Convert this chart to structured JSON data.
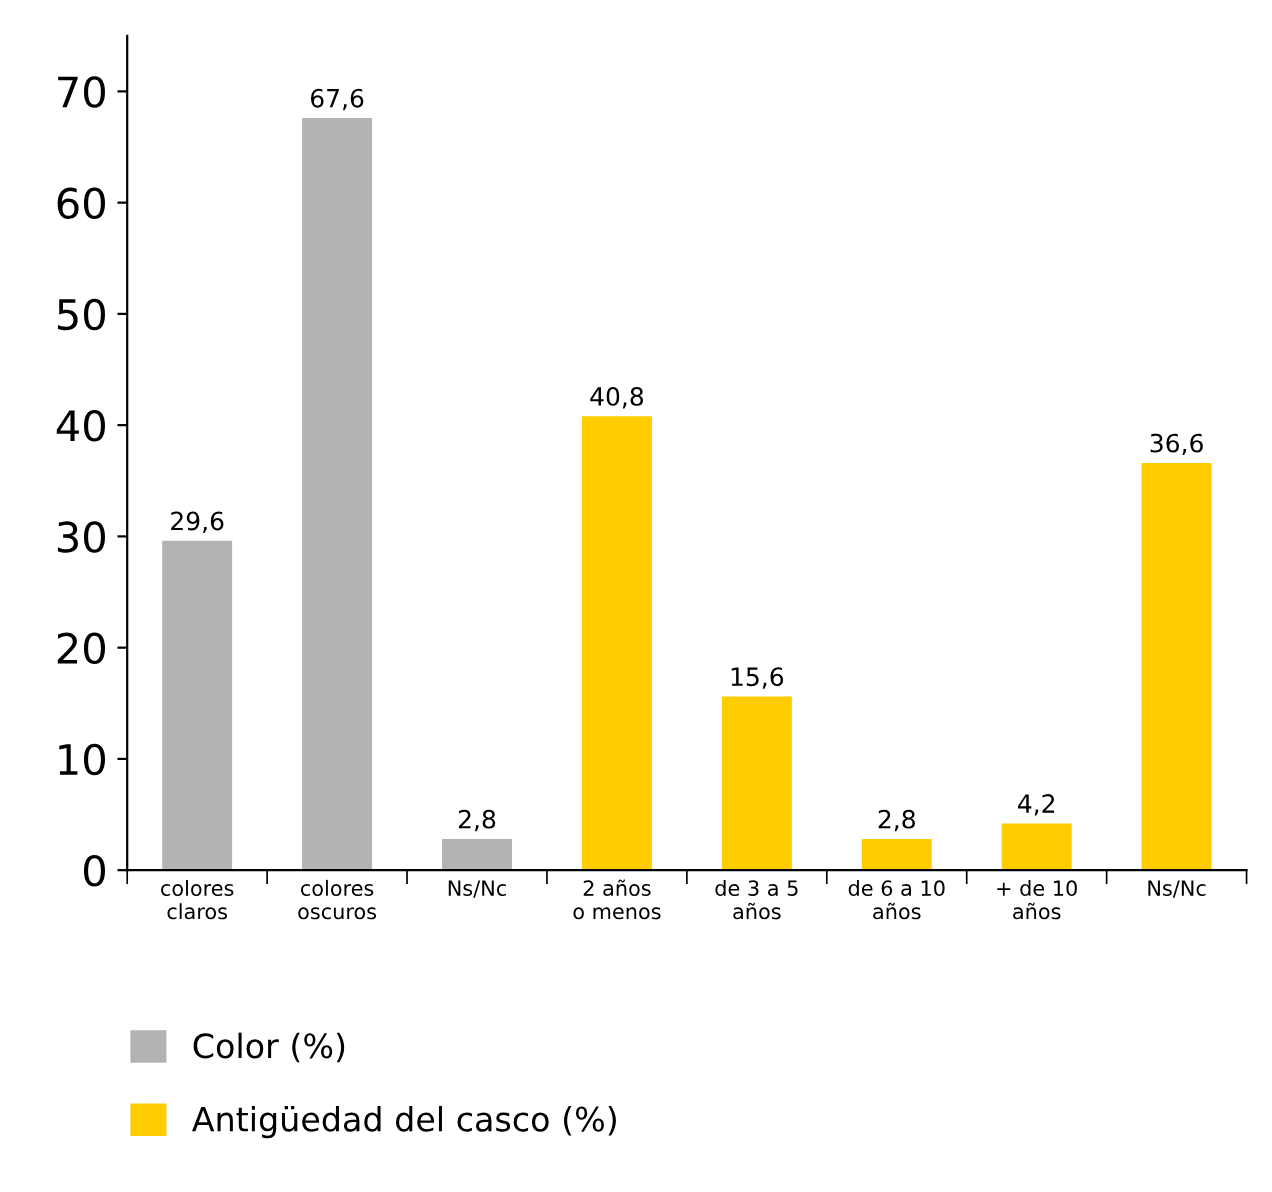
{
  "chart_data": {
    "type": "bar",
    "categories": [
      "colores\nclaros",
      "colores\noscuros",
      "Ns/Nc",
      "2 años\no menos",
      "de 3 a 5\naños",
      "de 6 a 10\naños",
      "+ de 10\naños",
      "Ns/Nc"
    ],
    "series": [
      {
        "name": "Color (%)",
        "color": "#b3b3b3",
        "values": [
          29.6,
          67.6,
          2.8,
          null,
          null,
          null,
          null,
          null
        ],
        "value_labels": [
          "29,6",
          "67,6",
          "2,8",
          null,
          null,
          null,
          null,
          null
        ]
      },
      {
        "name": "Antigüedad del casco (%)",
        "color": "#ffcc00",
        "values": [
          null,
          null,
          null,
          40.8,
          15.6,
          2.8,
          4.2,
          36.6
        ],
        "value_labels": [
          null,
          null,
          null,
          "40,8",
          "15,6",
          "2,8",
          "4,2",
          "36,6"
        ]
      }
    ],
    "ylim": [
      0,
      75
    ],
    "yticks": [
      0,
      10,
      20,
      30,
      40,
      50,
      60,
      70
    ],
    "grid": false,
    "legend": "bottom left"
  }
}
